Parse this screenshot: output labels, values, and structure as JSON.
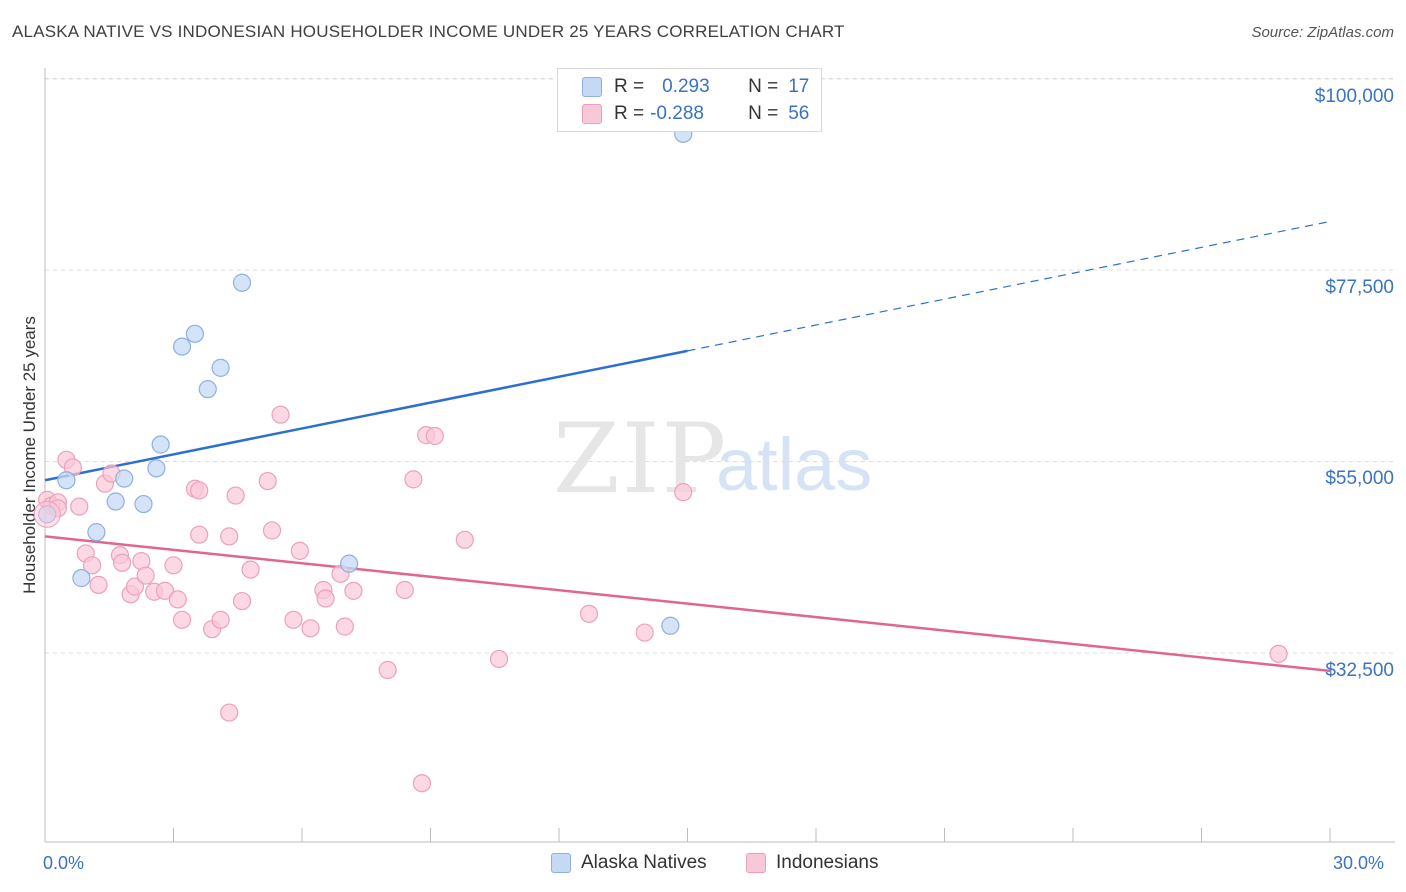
{
  "title": "ALASKA NATIVE VS INDONESIAN HOUSEHOLDER INCOME UNDER 25 YEARS CORRELATION CHART",
  "source": "Source: ZipAtlas.com",
  "watermark": {
    "zip": "ZIP",
    "atlas": "atlas"
  },
  "legend": {
    "rows": [
      {
        "r_label": "R =",
        "r_value": "0.293",
        "n_label": "N =",
        "n_value": "17"
      },
      {
        "r_label": "R =",
        "r_value": "-0.288",
        "n_label": "N =",
        "n_value": "56"
      }
    ]
  },
  "colors": {
    "blue_fill": "#c5d9f5",
    "blue_stroke": "#8fb0e0",
    "blue_line": "#2d6fd0",
    "pink_fill": "#f9c8d8",
    "pink_stroke": "#eda0bb",
    "pink_line": "#e0668f",
    "axis_text": "#3a72c4",
    "grid": "#dcdcdc"
  },
  "chart_data": {
    "type": "scatter",
    "title": "ALASKA NATIVE VS INDONESIAN HOUSEHOLDER INCOME UNDER 25 YEARS CORRELATION CHART",
    "xlabel": "",
    "ylabel": "Householder Income Under 25 years",
    "xlim": [
      0,
      30
    ],
    "ylim": [
      13000,
      102000
    ],
    "x_tick_labels": [
      "0.0%",
      "30.0%"
    ],
    "y_ticks": [
      32500,
      55000,
      77500,
      100000
    ],
    "y_tick_labels": [
      "$32,500",
      "$55,000",
      "$77,500",
      "$100,000"
    ],
    "grid": true,
    "legend_position": "top-center",
    "series": [
      {
        "name": "Alaska Natives",
        "color": "#c5d9f5",
        "points": [
          [
            0.05,
            48800
          ],
          [
            0.5,
            52800
          ],
          [
            0.85,
            41300
          ],
          [
            1.2,
            46700
          ],
          [
            1.65,
            50300
          ],
          [
            1.85,
            53000
          ],
          [
            2.3,
            50000
          ],
          [
            2.6,
            54200
          ],
          [
            2.7,
            57000
          ],
          [
            3.2,
            68500
          ],
          [
            3.5,
            70000
          ],
          [
            3.8,
            63500
          ],
          [
            4.1,
            66000
          ],
          [
            4.6,
            76000
          ],
          [
            7.1,
            43000
          ],
          [
            14.6,
            35700
          ],
          [
            14.9,
            93500
          ]
        ],
        "trend": {
          "x": [
            0,
            15,
            30
          ],
          "y": [
            52800,
            68000,
            83200
          ],
          "solid_until": 15
        }
      },
      {
        "name": "Indonesians",
        "color": "#f9c8d8",
        "points": [
          [
            0.05,
            50500
          ],
          [
            0.15,
            49800
          ],
          [
            0.3,
            50200
          ],
          [
            0.5,
            55200
          ],
          [
            0.65,
            54300
          ],
          [
            0.8,
            49700
          ],
          [
            0.95,
            44200
          ],
          [
            1.1,
            42800
          ],
          [
            1.25,
            40500
          ],
          [
            1.4,
            52400
          ],
          [
            1.55,
            53600
          ],
          [
            1.75,
            44000
          ],
          [
            1.8,
            43100
          ],
          [
            2.0,
            39400
          ],
          [
            2.1,
            40300
          ],
          [
            2.25,
            43300
          ],
          [
            2.35,
            41600
          ],
          [
            2.55,
            39700
          ],
          [
            2.8,
            39800
          ],
          [
            3.0,
            42800
          ],
          [
            3.1,
            38800
          ],
          [
            3.2,
            36400
          ],
          [
            3.5,
            51800
          ],
          [
            3.6,
            46400
          ],
          [
            3.9,
            35300
          ],
          [
            4.1,
            36400
          ],
          [
            4.3,
            46200
          ],
          [
            4.45,
            51000
          ],
          [
            4.6,
            38600
          ],
          [
            4.8,
            42300
          ],
          [
            5.2,
            52700
          ],
          [
            5.3,
            46900
          ],
          [
            5.5,
            60500
          ],
          [
            5.8,
            36400
          ],
          [
            5.95,
            44500
          ],
          [
            6.2,
            35400
          ],
          [
            6.5,
            39900
          ],
          [
            6.55,
            38900
          ],
          [
            6.9,
            41800
          ],
          [
            7.0,
            35600
          ],
          [
            7.2,
            39800
          ],
          [
            8.0,
            30500
          ],
          [
            8.4,
            39900
          ],
          [
            8.6,
            52900
          ],
          [
            8.9,
            58100
          ],
          [
            9.1,
            58000
          ],
          [
            9.8,
            45800
          ],
          [
            10.6,
            31800
          ],
          [
            12.7,
            37100
          ],
          [
            14.0,
            34900
          ],
          [
            14.9,
            51400
          ],
          [
            28.8,
            32400
          ],
          [
            4.3,
            25500
          ],
          [
            8.8,
            17200
          ],
          [
            3.6,
            51600
          ],
          [
            0.3,
            49500
          ]
        ],
        "trend": {
          "x": [
            0,
            30
          ],
          "y": [
            46200,
            30400
          ]
        }
      }
    ]
  },
  "bottom_legend": {
    "items": [
      "Alaska Natives",
      "Indonesians"
    ]
  },
  "axis": {
    "y_ticks": [
      "$100,000",
      "$77,500",
      "$55,000",
      "$32,500"
    ],
    "x_ticks": [
      "0.0%",
      "30.0%"
    ]
  }
}
